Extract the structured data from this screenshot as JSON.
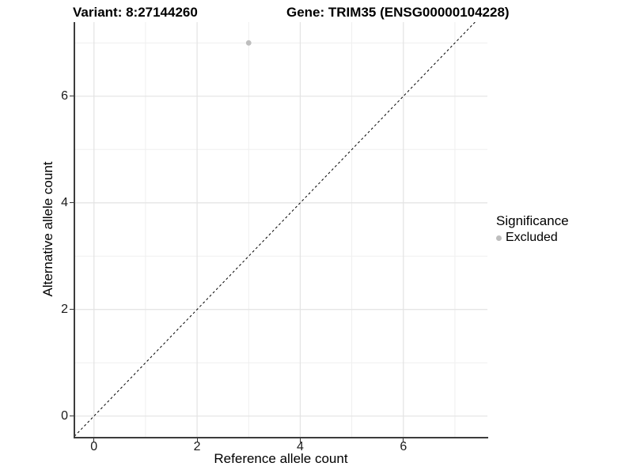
{
  "title": {
    "variant": "Variant: 8:27144260",
    "gene": "Gene: TRIM35 (ENSG00000104228)"
  },
  "legend": {
    "title": "Significance",
    "items": [
      {
        "label": "Excluded",
        "color": "#bebebe"
      }
    ]
  },
  "colors": {
    "background": "#ffffff",
    "grid_major": "#e3e3e3",
    "grid_minor": "#efefef",
    "axis_line": "#3c3c3c",
    "tick_text": "#1a1a1a",
    "point": "#bebebe",
    "reference_line": "#000000"
  },
  "chart_data": {
    "type": "scatter",
    "title": "Variant: 8:27144260          Gene: TRIM35 (ENSG00000104228)",
    "title_variant": "Variant: 8:27144260",
    "title_gene": "Gene: TRIM35 (ENSG00000104228)",
    "xlabel": "Reference allele count",
    "ylabel": "Alternative allele count",
    "xlim": [
      -0.38,
      7.63
    ],
    "ylim": [
      -0.39,
      7.39
    ],
    "x_ticks": [
      0,
      2,
      4,
      6
    ],
    "y_ticks": [
      0,
      2,
      4,
      6
    ],
    "x_minor": [
      1,
      3,
      5,
      7
    ],
    "y_minor": [
      1,
      3,
      5,
      7
    ],
    "grid": true,
    "legend_position": "right",
    "legend": {
      "title": "Significance",
      "items": [
        {
          "label": "Excluded",
          "color": "#bebebe"
        }
      ]
    },
    "series": [
      {
        "name": "Excluded",
        "color": "#bebebe",
        "points": [
          {
            "x": 3,
            "y": 7
          }
        ]
      }
    ],
    "reference_line": {
      "type": "identity",
      "slope": 1,
      "intercept": 0,
      "style": "dashed",
      "color": "#000000"
    }
  }
}
